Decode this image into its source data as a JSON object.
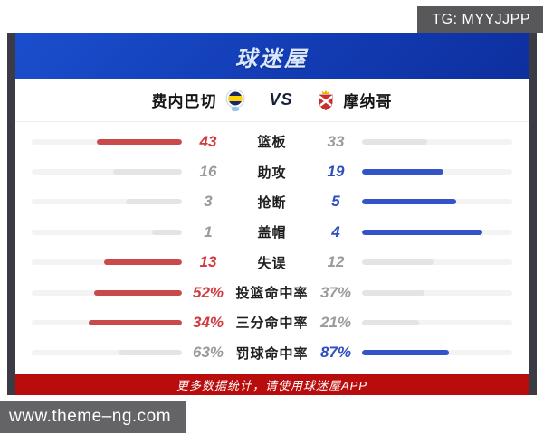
{
  "tg_badge": "TG: MYYJJPP",
  "site_watermark": "www.theme–ng.com",
  "header": {
    "logo_text": "球迷屋"
  },
  "match": {
    "home_name": "费内巴切",
    "away_name": "摩纳哥",
    "vs_label": "VS"
  },
  "footer": {
    "text": "更多数据统计，请使用球迷屋APP"
  },
  "colors": {
    "home_accent": "#c94a4c",
    "home_text": "#d1393d",
    "away_accent": "#3353c8",
    "away_text": "#2c4ec0",
    "neutral_fill": "#e4e4e7",
    "track": "#f3f3f4",
    "header_blue": "#123cb4",
    "footer_red": "#b90d0d"
  },
  "chart_data": {
    "type": "bar",
    "orientation": "horizontal-paired",
    "title": "费内巴切 VS 摩纳哥",
    "legend_position": "top",
    "teams": [
      "费内巴切",
      "摩纳哥"
    ],
    "rows": [
      {
        "label": "篮板",
        "home": {
          "display": "43",
          "value": 43,
          "highlight": true
        },
        "away": {
          "display": "33",
          "value": 33,
          "highlight": false
        }
      },
      {
        "label": "助攻",
        "home": {
          "display": "16",
          "value": 16,
          "highlight": false
        },
        "away": {
          "display": "19",
          "value": 19,
          "highlight": true
        }
      },
      {
        "label": "抢断",
        "home": {
          "display": "3",
          "value": 3,
          "highlight": false
        },
        "away": {
          "display": "5",
          "value": 5,
          "highlight": true
        }
      },
      {
        "label": "盖帽",
        "home": {
          "display": "1",
          "value": 1,
          "highlight": false
        },
        "away": {
          "display": "4",
          "value": 4,
          "highlight": true
        }
      },
      {
        "label": "失误",
        "home": {
          "display": "13",
          "value": 13,
          "highlight": true
        },
        "away": {
          "display": "12",
          "value": 12,
          "highlight": false
        }
      },
      {
        "label": "投篮命中率",
        "home": {
          "display": "52%",
          "value": 52,
          "highlight": true
        },
        "away": {
          "display": "37%",
          "value": 37,
          "highlight": false
        }
      },
      {
        "label": "三分命中率",
        "home": {
          "display": "34%",
          "value": 34,
          "highlight": true
        },
        "away": {
          "display": "21%",
          "value": 21,
          "highlight": false
        }
      },
      {
        "label": "罚球命中率",
        "home": {
          "display": "63%",
          "value": 63,
          "highlight": false
        },
        "away": {
          "display": "87%",
          "value": 87,
          "highlight": true
        }
      }
    ]
  }
}
